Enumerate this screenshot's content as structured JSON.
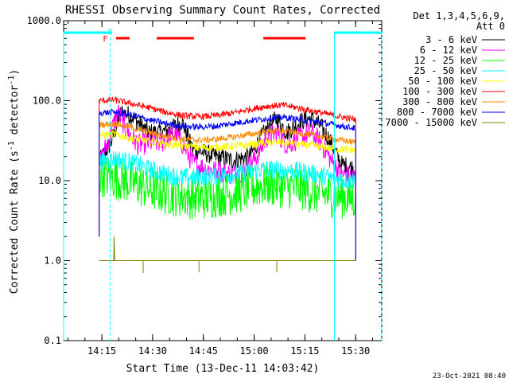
{
  "chart_data": {
    "type": "line",
    "title": "RHESSI Observing Summary Count Rates, Corrected",
    "xlabel": "Start Time (13-Dec-11 14:03:42)",
    "ylabel": "Corrected Count Rate (s⁻¹ detector⁻¹)",
    "ylabel_parts": {
      "main": "Corrected Count Rate (s",
      "sup1": "-1",
      "mid": " detector",
      "sup2": "-1",
      "end": ")"
    },
    "yscale": "log",
    "ylim": [
      0.1,
      1000
    ],
    "xlim_minutes": [
      0,
      94
    ],
    "xticks": [
      {
        "minute": 11.3,
        "label": "14:15"
      },
      {
        "minute": 26.3,
        "label": "14:30"
      },
      {
        "minute": 41.3,
        "label": "14:45"
      },
      {
        "minute": 56.3,
        "label": "15:00"
      },
      {
        "minute": 71.3,
        "label": "15:15"
      },
      {
        "minute": 86.3,
        "label": "15:30"
      }
    ],
    "yticks": [
      {
        "value": 0.1,
        "label": "0.1"
      },
      {
        "value": 1,
        "label": "1.0"
      },
      {
        "value": 10,
        "label": "10.0"
      },
      {
        "value": 100,
        "label": "100.0"
      },
      {
        "value": 1000,
        "label": "1000.0"
      }
    ],
    "legend_header": [
      "Det 1,3,4,5,6,9,",
      "Att 0"
    ],
    "series": [
      {
        "name": "3 - 6 keV",
        "color": "#000000",
        "start": 10.5,
        "end": 86.3,
        "points": [
          [
            10.5,
            17
          ],
          [
            14,
            30
          ],
          [
            17,
            72
          ],
          [
            20,
            65
          ],
          [
            25,
            40
          ],
          [
            29,
            40
          ],
          [
            32,
            45
          ],
          [
            35,
            55
          ],
          [
            38,
            25
          ],
          [
            42,
            22
          ],
          [
            45,
            20
          ],
          [
            50,
            18
          ],
          [
            55,
            20
          ],
          [
            58,
            33
          ],
          [
            61,
            50
          ],
          [
            63,
            60
          ],
          [
            66,
            40
          ],
          [
            70,
            55
          ],
          [
            73,
            60
          ],
          [
            76,
            48
          ],
          [
            79,
            30
          ],
          [
            82,
            16
          ],
          [
            86.3,
            14
          ]
        ]
      },
      {
        "name": "6 - 12 keV",
        "color": "#ff00ff",
        "start": 10.5,
        "end": 86.3,
        "points": [
          [
            10.5,
            16
          ],
          [
            13,
            30
          ],
          [
            16,
            72
          ],
          [
            19,
            40
          ],
          [
            22,
            28
          ],
          [
            26,
            30
          ],
          [
            29,
            30
          ],
          [
            33,
            40
          ],
          [
            36,
            25
          ],
          [
            38,
            17
          ],
          [
            42,
            14
          ],
          [
            46,
            13
          ],
          [
            50,
            12
          ],
          [
            54,
            14
          ],
          [
            57,
            20
          ],
          [
            60,
            35
          ],
          [
            63,
            40
          ],
          [
            66,
            28
          ],
          [
            70,
            35
          ],
          [
            73,
            40
          ],
          [
            76,
            30
          ],
          [
            79,
            18
          ],
          [
            82,
            12
          ],
          [
            86.3,
            11
          ]
        ]
      },
      {
        "name": "12 - 25 keV",
        "color": "#00ff00",
        "start": 10.5,
        "end": 86.3,
        "points": [
          [
            10.5,
            12
          ],
          [
            15,
            11
          ],
          [
            20,
            9.5
          ],
          [
            25,
            8
          ],
          [
            30,
            7
          ],
          [
            35,
            6.5
          ],
          [
            40,
            6
          ],
          [
            45,
            6.5
          ],
          [
            50,
            7
          ],
          [
            55,
            8
          ],
          [
            60,
            9
          ],
          [
            65,
            8.5
          ],
          [
            70,
            8
          ],
          [
            75,
            7
          ],
          [
            80,
            6.5
          ],
          [
            86.3,
            6
          ]
        ]
      },
      {
        "name": "25 - 50 keV",
        "color": "#00ffff",
        "start": 10.5,
        "end": 86.3,
        "points": [
          [
            10.5,
            17
          ],
          [
            15,
            19
          ],
          [
            20,
            17
          ],
          [
            25,
            14
          ],
          [
            30,
            12
          ],
          [
            35,
            11
          ],
          [
            40,
            11
          ],
          [
            45,
            11.5
          ],
          [
            50,
            12
          ],
          [
            55,
            13
          ],
          [
            60,
            14
          ],
          [
            65,
            13.5
          ],
          [
            70,
            13
          ],
          [
            75,
            12
          ],
          [
            80,
            10.5
          ],
          [
            86.3,
            10
          ]
        ]
      },
      {
        "name": "50 - 100 keV",
        "color": "#ffff00",
        "start": 10.5,
        "end": 86.3,
        "points": [
          [
            10.5,
            37
          ],
          [
            15,
            38
          ],
          [
            20,
            34
          ],
          [
            25,
            31
          ],
          [
            30,
            29
          ],
          [
            35,
            27
          ],
          [
            40,
            26
          ],
          [
            45,
            26
          ],
          [
            50,
            27
          ],
          [
            55,
            28
          ],
          [
            60,
            30
          ],
          [
            65,
            30
          ],
          [
            70,
            28
          ],
          [
            75,
            27
          ],
          [
            80,
            25
          ],
          [
            86.3,
            24
          ]
        ]
      },
      {
        "name": "100 - 300 keV",
        "color": "#ff0000",
        "start": 10.5,
        "end": 86.3,
        "points": [
          [
            10.5,
            100
          ],
          [
            15,
            102
          ],
          [
            20,
            92
          ],
          [
            25,
            82
          ],
          [
            30,
            72
          ],
          [
            35,
            65
          ],
          [
            40,
            63
          ],
          [
            45,
            65
          ],
          [
            50,
            70
          ],
          [
            55,
            78
          ],
          [
            60,
            85
          ],
          [
            65,
            88
          ],
          [
            70,
            80
          ],
          [
            75,
            72
          ],
          [
            80,
            65
          ],
          [
            86.3,
            58
          ]
        ]
      },
      {
        "name": "300 - 800 keV",
        "color": "#ff8c00",
        "start": 10.5,
        "end": 86.3,
        "points": [
          [
            10.5,
            50
          ],
          [
            15,
            52
          ],
          [
            20,
            46
          ],
          [
            25,
            40
          ],
          [
            30,
            36
          ],
          [
            35,
            33
          ],
          [
            40,
            32
          ],
          [
            45,
            33
          ],
          [
            50,
            35
          ],
          [
            55,
            38
          ],
          [
            60,
            41
          ],
          [
            65,
            42
          ],
          [
            70,
            39
          ],
          [
            75,
            36
          ],
          [
            80,
            33
          ],
          [
            86.3,
            30
          ]
        ]
      },
      {
        "name": "800 - 7000 keV",
        "color": "#0000ff",
        "start": 10.5,
        "end": 86.3,
        "points": [
          [
            10.5,
            70
          ],
          [
            15,
            72
          ],
          [
            20,
            66
          ],
          [
            25,
            58
          ],
          [
            30,
            52
          ],
          [
            35,
            48
          ],
          [
            40,
            47
          ],
          [
            45,
            48
          ],
          [
            50,
            52
          ],
          [
            55,
            56
          ],
          [
            60,
            60
          ],
          [
            65,
            62
          ],
          [
            70,
            58
          ],
          [
            75,
            54
          ],
          [
            80,
            50
          ],
          [
            86.3,
            45
          ]
        ]
      },
      {
        "name": "7000 - 15000 keV",
        "color": "#808000",
        "start": 10.5,
        "end": 86.3,
        "points": [
          [
            10.5,
            1
          ],
          [
            13,
            1
          ],
          [
            14,
            2
          ],
          [
            15,
            1
          ],
          [
            86.3,
            1
          ]
        ]
      }
    ],
    "annotations": {
      "flags": [
        {
          "label": "F",
          "minute": 12.3,
          "color": "#ff0000"
        },
        {
          "label": "N",
          "minute": 13.8,
          "color": "#00ffff"
        }
      ],
      "flare_bars_minutes": [
        [
          15.5,
          19.5
        ],
        [
          27.5,
          38.5
        ],
        [
          59,
          71.5
        ]
      ],
      "night_bars_minutes": [
        [
          0,
          13.8
        ],
        [
          80,
          94
        ]
      ],
      "saa_lines_minutes": [
        0,
        13.8,
        80,
        94
      ]
    },
    "grid": false,
    "legend_position": "top-right",
    "footer_date": "23-Oct-2021 08:40"
  }
}
